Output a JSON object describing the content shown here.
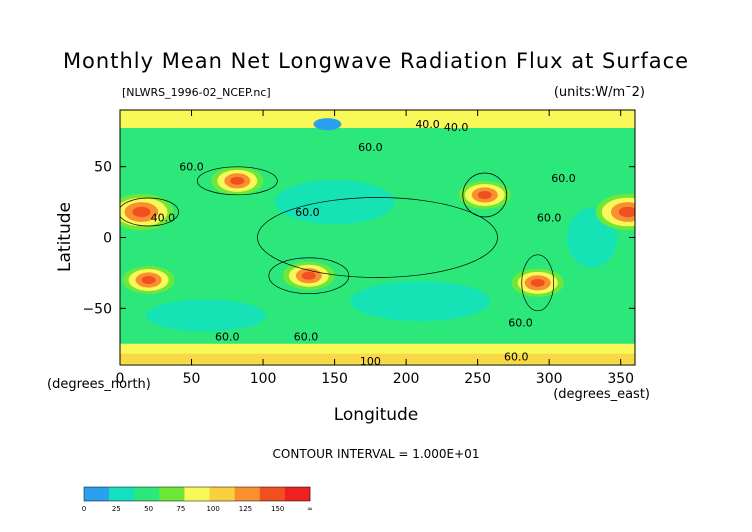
{
  "chart_data": {
    "type": "heatmap",
    "title": "Monthly Mean Net Longwave Radiation Flux at Surface",
    "file_label": "[NLWRS_1996-02_NCEP.nc]",
    "units_label": "(units:W/m¯2)",
    "xlabel": "Longitude",
    "ylabel": "Latitude",
    "x_unit_label": "(degrees_east)",
    "y_unit_label": "(degrees_north)",
    "xlim": [
      0,
      360
    ],
    "ylim": [
      -90,
      90
    ],
    "x_ticks": [
      0,
      50,
      100,
      150,
      200,
      250,
      300,
      350
    ],
    "y_ticks": [
      50,
      0,
      -50
    ],
    "x_tick_labels": [
      "0",
      "50",
      "100",
      "150",
      "200",
      "250",
      "300",
      "350"
    ],
    "y_tick_labels": [
      "50",
      "0",
      "−50"
    ],
    "contour_interval_text": "CONTOUR INTERVAL = 1.000E+01",
    "contour_labels": [
      {
        "text": "40.0",
        "lon": 215,
        "lat": 80
      },
      {
        "text": "40.0",
        "lon": 235,
        "lat": 78
      },
      {
        "text": "60.0",
        "lon": 175,
        "lat": 64
      },
      {
        "text": "60.0",
        "lon": 50,
        "lat": 50
      },
      {
        "text": "60.0",
        "lon": 310,
        "lat": 42
      },
      {
        "text": "60.0",
        "lon": 131,
        "lat": 18
      },
      {
        "text": "60.0",
        "lon": 300,
        "lat": 14
      },
      {
        "text": "40.0",
        "lon": 30,
        "lat": 14
      },
      {
        "text": "60.0",
        "lon": 280,
        "lat": -60
      },
      {
        "text": "60.0",
        "lon": 75,
        "lat": -70
      },
      {
        "text": "60.0",
        "lon": 130,
        "lat": -70
      },
      {
        "text": "60.0",
        "lon": 277,
        "lat": -84
      },
      {
        "text": "100",
        "lon": 175,
        "lat": -87
      }
    ],
    "colorbar": {
      "levels": [
        "0",
        "25",
        "50",
        "75",
        "100",
        "125",
        "150",
        "∞"
      ],
      "colors": [
        "#2ca0f0",
        "#12e0c0",
        "#2ce87a",
        "#6ee838",
        "#f8f858",
        "#f8d040",
        "#f89030",
        "#f05020",
        "#f02020"
      ]
    },
    "approx_field_features": [
      {
        "desc": "high flux center",
        "lon": 132,
        "lat": -27,
        "value": 100
      },
      {
        "desc": "high flux center",
        "lon": 292,
        "lat": -32,
        "value": 110
      },
      {
        "desc": "high flux band",
        "lon": 15,
        "lat": 18,
        "value": 140
      },
      {
        "desc": "high flux band",
        "lon": 355,
        "lat": 18,
        "value": 130
      },
      {
        "desc": "high flux center",
        "lon": 255,
        "lat": 30,
        "value": 110
      },
      {
        "desc": "high flux center",
        "lon": 82,
        "lat": 40,
        "value": 110
      },
      {
        "desc": "high flux center",
        "lon": 20,
        "lat": -30,
        "value": 100
      },
      {
        "desc": "low flux center",
        "lon": 145,
        "lat": 80,
        "value": 20
      }
    ]
  }
}
